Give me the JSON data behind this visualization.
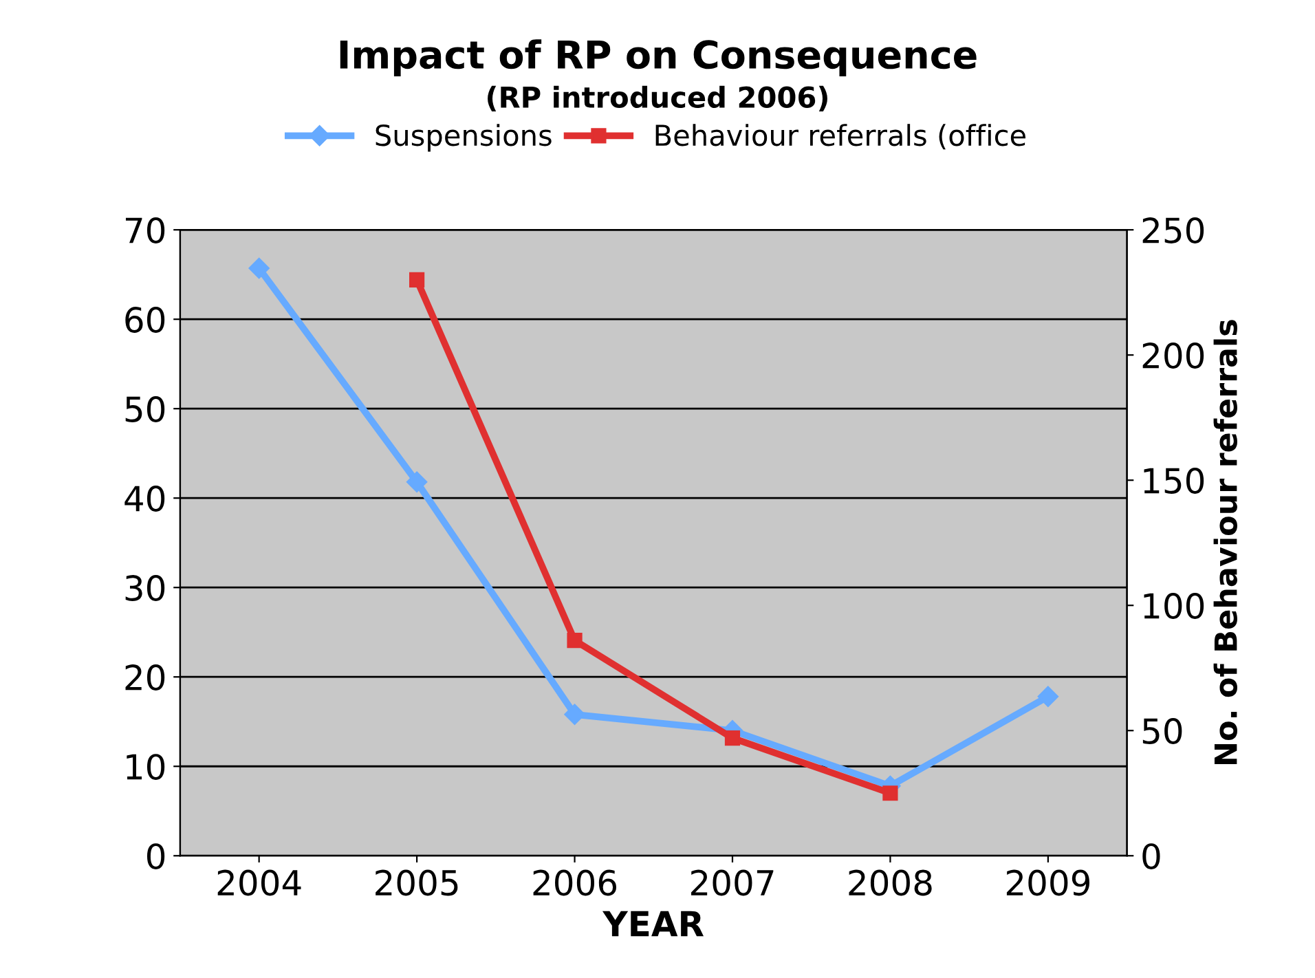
{
  "chart_data": {
    "type": "line",
    "title": "Impact of RP on Consequence",
    "subtitle": "(RP introduced 2006)",
    "xlabel": "YEAR",
    "y2label": "No. of Behaviour referrals",
    "categories": [
      "2004",
      "2005",
      "2006",
      "2007",
      "2008",
      "2009"
    ],
    "series": [
      {
        "name": "Suspensions",
        "color": "#66aaff",
        "marker": "diamond",
        "values": [
          65.7,
          41.8,
          15.8,
          14,
          7.8,
          17.8
        ]
      },
      {
        "name": "Behaviour referrals (office",
        "color": "#e03030",
        "marker": "square",
        "axis": "y2",
        "values": [
          null,
          230,
          86,
          47,
          25,
          null
        ]
      }
    ],
    "ylim": [
      0,
      70
    ],
    "yticks": [
      0,
      10,
      20,
      30,
      40,
      50,
      60,
      70
    ],
    "y2lim": [
      0,
      250
    ],
    "y2ticks": [
      0,
      50,
      100,
      150,
      200,
      250
    ],
    "grid": "y",
    "legend": "top",
    "line_style": "solid"
  }
}
